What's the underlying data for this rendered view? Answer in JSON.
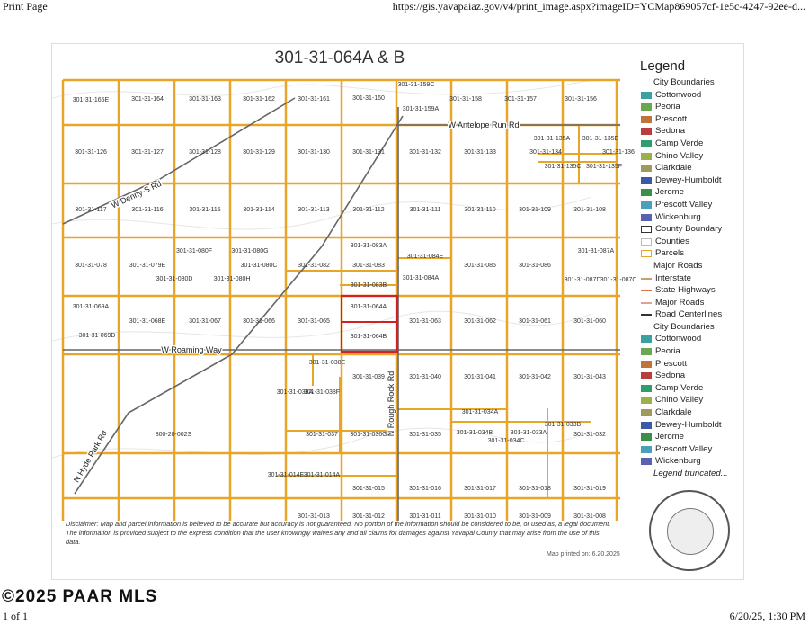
{
  "browser": {
    "title": "Print Page",
    "url": "https://gis.yavapaiaz.gov/v4/print_image.aspx?imageID=YCMap869057cf-1e5c-4247-92ee-d...",
    "page_counter": "1 of 1",
    "datetime": "6/20/25, 1:30 PM"
  },
  "watermark": "©2025 PAAR MLS",
  "map": {
    "title": "301-31-064A & B",
    "disclaimer": "Disclaimer: Map and parcel information is believed to be accurate but accuracy is not guaranteed. No portion of the information should be considered to be, or used as, a legal document. The information is provided subject to the express condition that the user knowingly waives any and all claims for damages against Yavapai County that may arise from the use of this data.",
    "printed_on": "Map printed on: 6.20.2025",
    "roads": [
      "W Antelope Run Rd",
      "W Denny-S Rd",
      "W Roaming Way",
      "N Rough Rock Rd",
      "N Hyde Park Rd"
    ],
    "parcels": [
      "301-31-165E",
      "301-31-164",
      "301-31-163",
      "301-31-162",
      "301-31-161",
      "301-31-160",
      "301-31-159C",
      "301-31-159A",
      "301-31-158",
      "301-31-157",
      "301-31-156",
      "301-31-135A",
      "301-31-135E",
      "301-31-126",
      "301-31-127",
      "301-31-128",
      "301-31-129",
      "301-31-130",
      "301-31-131",
      "301-31-132",
      "301-31-133",
      "301-31-134",
      "301-31-136",
      "301-31-135C",
      "301-31-135F",
      "301-31-117",
      "301-31-116",
      "301-31-115",
      "301-31-114",
      "301-31-113",
      "301-31-112",
      "301-31-111",
      "301-31-110",
      "301-31-109",
      "301-31-108",
      "301-31-083A",
      "301-31-080F",
      "301-31-080G",
      "301-31-084E",
      "301-31-087A",
      "301-31-078",
      "301-31-079E",
      "301-31-080C",
      "301-31-082",
      "301-31-083",
      "301-31-085",
      "301-31-086",
      "301-31-080D",
      "301-31-080H",
      "301-31-083B",
      "301-31-084A",
      "301-31-087D",
      "301-31-087C",
      "301-31-069A",
      "301-31-064A",
      "301-31-068E",
      "301-31-067",
      "301-31-066",
      "301-31-065",
      "301-31-063",
      "301-31-062",
      "301-31-061",
      "301-31-060",
      "301-31-064B",
      "301-31-069D",
      "301-31-038E",
      "301-31-039",
      "301-31-040",
      "301-31-041",
      "301-31-042",
      "301-31-043",
      "301-31-038A",
      "301-31-038F",
      "301-31-034A",
      "301-31-033B",
      "800-20-002S",
      "301-31-037",
      "301-31-036G",
      "301-31-035",
      "301-31-034B",
      "301-31-033A",
      "301-31-032",
      "301-31-034C",
      "301-31-014E",
      "301-31-014A",
      "301-31-015",
      "301-31-016",
      "301-31-017",
      "301-31-018",
      "301-31-019",
      "301-31-013",
      "301-31-012",
      "301-31-011",
      "301-31-010",
      "301-31-009",
      "301-31-008"
    ]
  },
  "legend": {
    "title": "Legend",
    "items": [
      {
        "kind": "header",
        "label": "City Boundaries"
      },
      {
        "kind": "swatch",
        "label": "Cottonwood",
        "color": "#3aa0a0"
      },
      {
        "kind": "swatch",
        "label": "Peoria",
        "color": "#6aa84f"
      },
      {
        "kind": "swatch",
        "label": "Prescott",
        "color": "#c0743a"
      },
      {
        "kind": "swatch",
        "label": "Sedona",
        "color": "#b83d3d"
      },
      {
        "kind": "swatch",
        "label": "Camp Verde",
        "color": "#2e9e6e"
      },
      {
        "kind": "swatch",
        "label": "Chino Valley",
        "color": "#9bb04a"
      },
      {
        "kind": "swatch",
        "label": "Clarkdale",
        "color": "#a09a5a"
      },
      {
        "kind": "swatch",
        "label": "Dewey-Humboldt",
        "color": "#3c58a8"
      },
      {
        "kind": "swatch",
        "label": "Jerome",
        "color": "#3a8f4a"
      },
      {
        "kind": "swatch",
        "label": "Prescott Valley",
        "color": "#4aa0b8"
      },
      {
        "kind": "swatch",
        "label": "Wickenburg",
        "color": "#5a62b0"
      },
      {
        "kind": "outline",
        "label": "County Boundary",
        "color": "#333333"
      },
      {
        "kind": "outline",
        "label": "Counties",
        "color": "#bbbbbb"
      },
      {
        "kind": "outline",
        "label": "Parcels",
        "color": "#e8a628"
      },
      {
        "kind": "header",
        "label": "Major Roads"
      },
      {
        "kind": "line",
        "label": "Interstate",
        "color": "#c8a070"
      },
      {
        "kind": "line",
        "label": "State Highways",
        "color": "#e07040"
      },
      {
        "kind": "line",
        "label": "Major Roads",
        "color": "#e0a0a0"
      },
      {
        "kind": "line",
        "label": "Road Centerlines",
        "color": "#333333"
      },
      {
        "kind": "header",
        "label": "City Boundaries"
      },
      {
        "kind": "swatch",
        "label": "Cottonwood",
        "color": "#3aa0a0"
      },
      {
        "kind": "swatch",
        "label": "Peoria",
        "color": "#6aa84f"
      },
      {
        "kind": "swatch",
        "label": "Prescott",
        "color": "#c0743a"
      },
      {
        "kind": "swatch",
        "label": "Sedona",
        "color": "#b83d3d"
      },
      {
        "kind": "swatch",
        "label": "Camp Verde",
        "color": "#2e9e6e"
      },
      {
        "kind": "swatch",
        "label": "Chino Valley",
        "color": "#9bb04a"
      },
      {
        "kind": "swatch",
        "label": "Clarkdale",
        "color": "#a09a5a"
      },
      {
        "kind": "swatch",
        "label": "Dewey-Humboldt",
        "color": "#3c58a8"
      },
      {
        "kind": "swatch",
        "label": "Jerome",
        "color": "#3a8f4a"
      },
      {
        "kind": "swatch",
        "label": "Prescott Valley",
        "color": "#4aa0b8"
      },
      {
        "kind": "swatch",
        "label": "Wickenburg",
        "color": "#5a62b0"
      },
      {
        "kind": "trunc",
        "label": "Legend truncated..."
      }
    ]
  },
  "colors": {
    "parcel_line": "#e8a628",
    "subject_outline": "#d42020",
    "road_line": "#666666"
  }
}
